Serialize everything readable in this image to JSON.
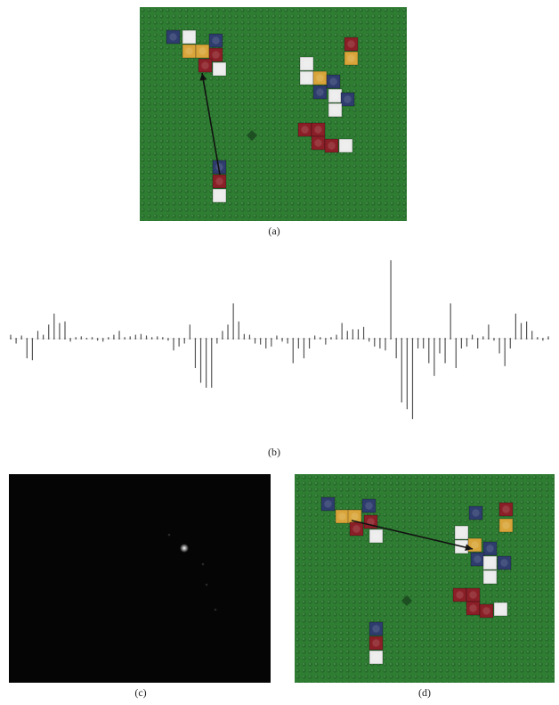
{
  "captions": {
    "a": "(a)",
    "b": "(b)",
    "c": "(c)",
    "d": "(d)"
  },
  "colors": {
    "baseplate": "#2f7d33",
    "stud_dark": "#1e5a22",
    "brick_red": "#8b1f27",
    "brick_navy": "#2e3c6e",
    "brick_yellow": "#d9a53a",
    "brick_white": "#ececec",
    "arrow": "#111111",
    "panel_c_bg": "#050505",
    "signal_line": "#555555"
  },
  "panel_b_signal": {
    "type": "stem",
    "values": [
      0.05,
      -0.05,
      0.04,
      -0.2,
      -0.22,
      0.1,
      0.05,
      0.18,
      0.32,
      0.2,
      0.22,
      -0.03,
      0.02,
      0.03,
      0.01,
      0.02,
      -0.02,
      -0.03,
      0.02,
      0.05,
      0.1,
      0.02,
      0.03,
      0.05,
      0.06,
      0.04,
      0.02,
      0.03,
      0.02,
      -0.02,
      -0.12,
      -0.08,
      -0.05,
      0.18,
      -0.3,
      -0.45,
      -0.5,
      -0.5,
      -0.05,
      0.1,
      0.18,
      0.45,
      0.22,
      0.06,
      0.05,
      -0.05,
      -0.06,
      -0.1,
      -0.08,
      0.04,
      -0.03,
      -0.05,
      -0.25,
      -0.1,
      -0.2,
      -0.1,
      0.04,
      0.02,
      -0.06,
      0.02,
      0.05,
      0.2,
      0.1,
      0.12,
      0.12,
      0.15,
      -0.03,
      -0.08,
      -0.1,
      -0.12,
      1.0,
      -0.2,
      -0.65,
      -0.72,
      -0.82,
      -0.1,
      -0.1,
      -0.25,
      -0.38,
      -0.15,
      -0.25,
      0.45,
      -0.3,
      -0.1,
      -0.08,
      0.05,
      -0.1,
      0.03,
      0.18,
      -0.02,
      -0.15,
      -0.28,
      -0.1,
      0.32,
      0.2,
      0.22,
      0.1,
      0.02,
      -0.02,
      0.03
    ]
  }
}
